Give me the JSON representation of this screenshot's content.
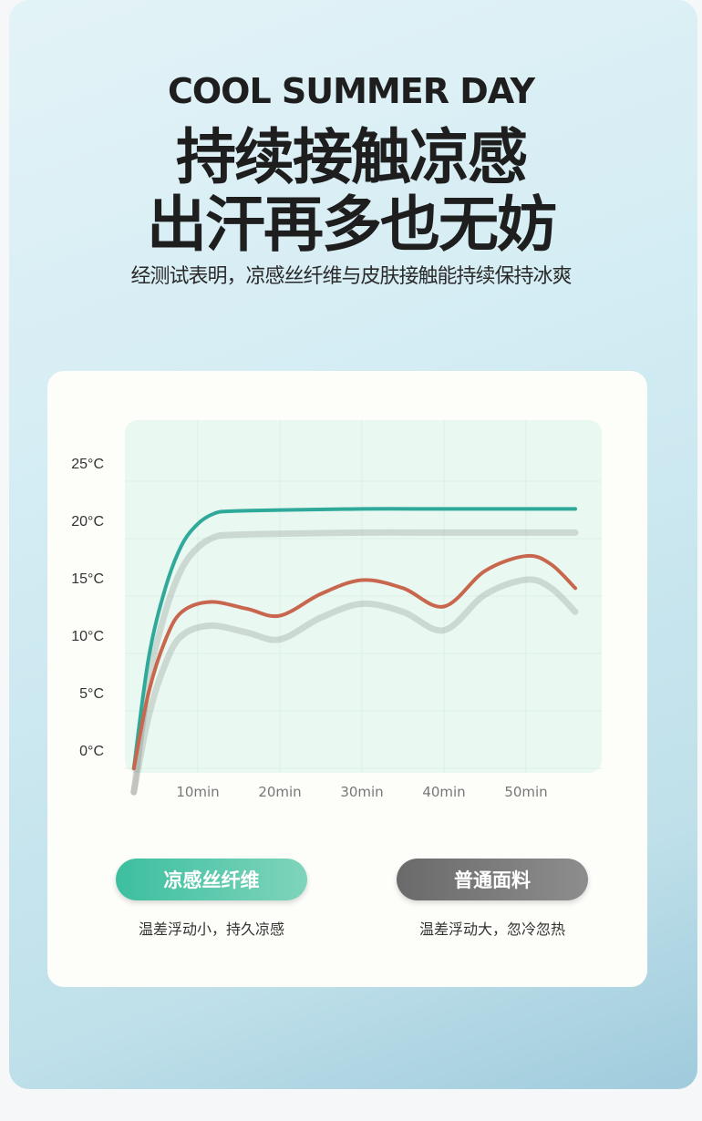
{
  "header": {
    "en_title": "COOL SUMMER DAY",
    "cn_title_line1": "持续接触凉感",
    "cn_title_line2": "出汗再多也无妨",
    "subtitle": "经测试表明，凉感丝纤维与皮肤接触能持续保持冰爽"
  },
  "chart_data": {
    "type": "line",
    "title": "",
    "xlabel": "",
    "ylabel": "",
    "x_ticks": [
      "10min",
      "20min",
      "30min",
      "40min",
      "50min"
    ],
    "x_tick_values": [
      10,
      20,
      30,
      40,
      50
    ],
    "y_ticks": [
      "0°C",
      "5°C",
      "10°C",
      "15°C",
      "20°C",
      "25°C"
    ],
    "y_tick_values": [
      0,
      5,
      10,
      15,
      20,
      25
    ],
    "xlim": [
      0,
      59
    ],
    "ylim": [
      -2,
      28
    ],
    "grid": true,
    "series": [
      {
        "name": "凉感丝纤维",
        "color": "#2fa99a",
        "x": [
          2.2,
          4,
          6,
          8,
          10,
          12,
          14,
          20,
          30,
          40,
          50,
          56
        ],
        "y": [
          -1.6,
          8,
          14,
          17.8,
          19.7,
          20.6,
          20.8,
          20.9,
          21,
          21,
          21,
          21
        ]
      },
      {
        "name": "普通面料",
        "color": "#c8674e",
        "x": [
          2.2,
          4,
          6,
          8,
          11.5,
          16,
          20,
          25,
          30,
          35,
          40,
          45,
          50,
          53,
          56
        ],
        "y": [
          -1.6,
          5,
          9.5,
          12,
          12.9,
          12.3,
          11.7,
          13.6,
          14.8,
          14.1,
          12.5,
          15.6,
          16.9,
          16.2,
          14.1
        ]
      }
    ]
  },
  "legend": [
    {
      "label": "凉感丝纤维",
      "caption": "温差浮动小，持久凉感",
      "color": "#3cbf9f"
    },
    {
      "label": "普通面料",
      "caption": "温差浮动大，忽冷忽热",
      "color": "#6a6a6a"
    }
  ]
}
